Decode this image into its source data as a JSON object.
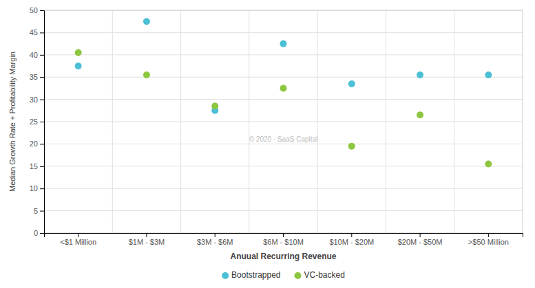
{
  "chart_data": {
    "type": "scatter",
    "categories": [
      "<$1 Million",
      "$1M - $3M",
      "$3M - $6M",
      "$6M - $10M",
      "$10M - $20M",
      "$20M - $50M",
      ">$50 Million"
    ],
    "series": [
      {
        "name": "Bootstrapped",
        "color": "#4BBFD6",
        "values": [
          37.5,
          47.5,
          27.5,
          42.5,
          33.5,
          35.5,
          35.5
        ]
      },
      {
        "name": "VC-backed",
        "color": "#8DC63F",
        "values": [
          40.5,
          35.5,
          28.5,
          32.5,
          19.5,
          26.5,
          15.5
        ]
      }
    ],
    "xlabel": "Anuual Recurring Revenue",
    "ylabel": "Median Growth Rate + Profitability Margin",
    "ylim": [
      0,
      50
    ],
    "yticks": [
      0,
      5,
      10,
      15,
      20,
      25,
      30,
      35,
      40,
      45,
      50
    ],
    "grid": true,
    "legend": "bottom",
    "annotations": [
      "© 2020 - SaaS Capital"
    ]
  }
}
